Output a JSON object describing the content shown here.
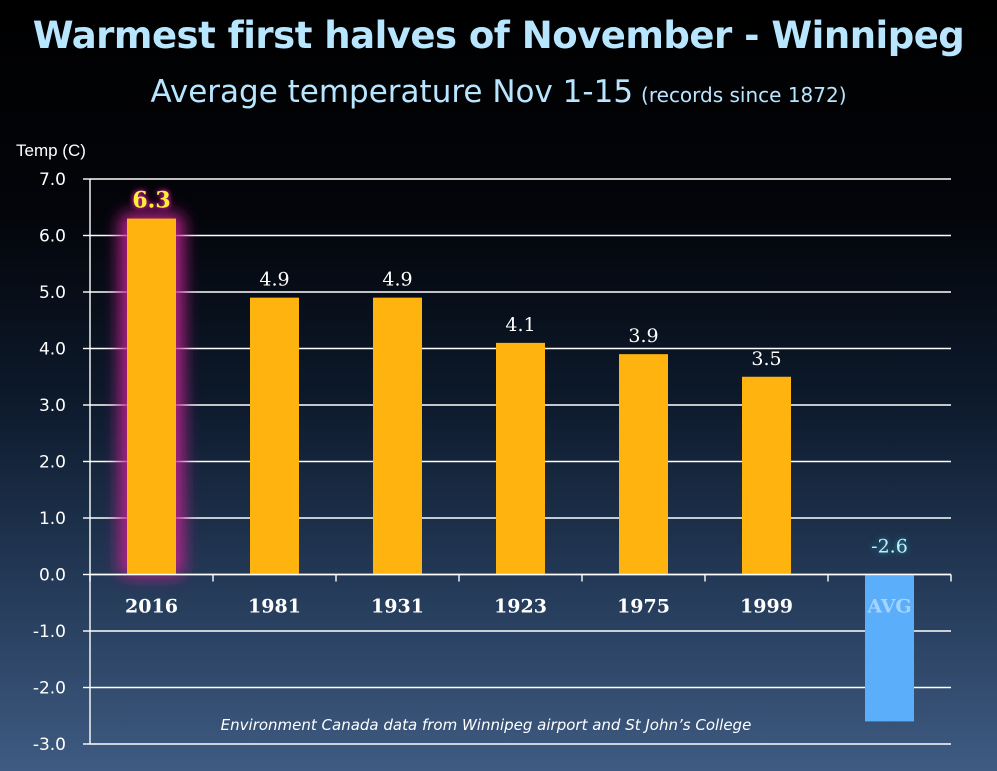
{
  "chart_data": {
    "type": "bar",
    "title": "Warmest  first halves of November - Winnipeg",
    "subtitle": "Average temperature Nov 1-15",
    "subtitle_note": "(records since 1872)",
    "ylabel": "Temp (C)",
    "xlabel": "",
    "categories": [
      "2016",
      "1981",
      "1931",
      "1923",
      "1975",
      "1999",
      "AVG"
    ],
    "values": [
      6.3,
      4.9,
      4.9,
      4.1,
      3.9,
      3.5,
      -2.6
    ],
    "value_labels": [
      "6.3",
      "4.9",
      "4.9",
      "4.1",
      "3.9",
      "3.5",
      "-2.6"
    ],
    "ylim": [
      -3.0,
      7.0
    ],
    "yticks": [
      "7.0",
      "6.0",
      "5.0",
      "4.0",
      "3.0",
      "2.0",
      "1.0",
      "0.0",
      "-1.0",
      "-2.0",
      "-3.0"
    ],
    "ytick_values": [
      7,
      6,
      5,
      4,
      3,
      2,
      1,
      0,
      -1,
      -2,
      -3
    ],
    "grid": true,
    "legend": "none",
    "annotation": "Environment Canada data from  Winnipeg  airport  and St John’s College",
    "colors": {
      "bar": "#ffb30f",
      "avg_bar": "#5aaefa",
      "highlight_glow": "#c0208f",
      "highlight_label": "#ffee33",
      "avg_label": "#bfeeff",
      "title": "#b8e6ff",
      "text": "#ffffff",
      "grid": "#ffffff"
    },
    "highlight": "2016"
  }
}
